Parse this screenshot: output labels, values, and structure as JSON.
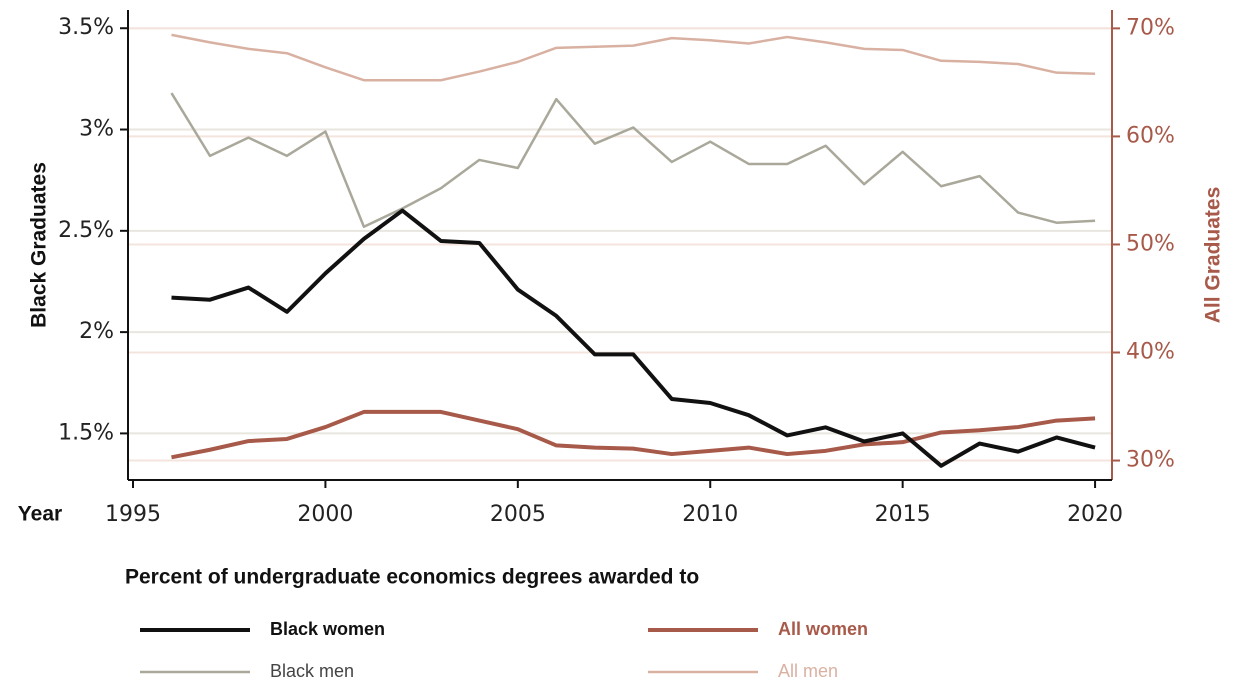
{
  "chart_data": {
    "type": "line",
    "y_label": "Black Graduates",
    "y2_label": "All Graduates",
    "x_label": "Year",
    "legend_title": "Percent of undergraduate economics degrees awarded to",
    "x": [
      1996,
      1997,
      1998,
      1999,
      2000,
      2001,
      2002,
      2003,
      2004,
      2005,
      2006,
      2007,
      2008,
      2009,
      2010,
      2011,
      2012,
      2013,
      2014,
      2015,
      2016,
      2017,
      2018,
      2019,
      2020
    ],
    "xlim": [
      1994.87,
      2020.44
    ],
    "xticks": [
      1995,
      2000,
      2005,
      2010,
      2015,
      2020
    ],
    "ylim": [
      1.27,
      3.59
    ],
    "yticks": [
      {
        "value": 1.5,
        "label": "1.5%"
      },
      {
        "value": 2,
        "label": "2%"
      },
      {
        "value": 2.5,
        "label": "2.5%"
      },
      {
        "value": 3,
        "label": "3%"
      },
      {
        "value": 3.5,
        "label": "3.5%"
      }
    ],
    "y2lim": [
      28.2,
      71.7
    ],
    "y2ticks": [
      {
        "value": 30,
        "label": "30%"
      },
      {
        "value": 40,
        "label": "40%"
      },
      {
        "value": 50,
        "label": "50%"
      },
      {
        "value": 60,
        "label": "60%"
      },
      {
        "value": 70,
        "label": "70%"
      }
    ],
    "y2_color": "#a85a4a",
    "grid": true,
    "series": [
      {
        "name": "Black women",
        "color": "#111111",
        "values": [
          2.17,
          2.16,
          2.22,
          2.1,
          2.29,
          2.46,
          2.6,
          2.45,
          2.44,
          2.21,
          2.08,
          1.89,
          1.89,
          1.67,
          1.65,
          1.59,
          1.49,
          1.53,
          1.46,
          1.5,
          1.34,
          1.45,
          1.41,
          1.48,
          1.43
        ]
      },
      {
        "name": "All women",
        "color": "#a85a4a",
        "axis": "y2",
        "values": [
          30.3,
          31.0,
          31.8,
          32.0,
          33.1,
          34.5,
          34.5,
          34.5,
          33.7,
          32.9,
          31.4,
          31.2,
          31.1,
          30.6,
          30.9,
          31.2,
          30.6,
          30.9,
          31.5,
          31.7,
          32.6,
          32.8,
          33.1,
          33.7,
          33.9
        ]
      },
      {
        "name": "Black men",
        "color": "#a9a89a",
        "values": [
          3.18,
          2.87,
          2.96,
          2.87,
          2.99,
          2.52,
          2.61,
          2.71,
          2.85,
          2.81,
          3.15,
          2.93,
          3.01,
          2.84,
          2.94,
          2.83,
          2.83,
          2.92,
          2.73,
          2.89,
          2.72,
          2.77,
          2.59,
          2.54,
          2.55
        ]
      },
      {
        "name": "All men",
        "color": "#d9b1a2",
        "axis": "y2",
        "values": [
          69.4,
          68.7,
          68.1,
          67.7,
          66.4,
          65.2,
          65.2,
          65.2,
          66.0,
          66.9,
          68.2,
          68.3,
          68.4,
          69.1,
          68.9,
          68.6,
          69.2,
          68.7,
          68.1,
          68.0,
          67.0,
          66.9,
          66.7,
          65.9,
          65.8
        ]
      }
    ]
  }
}
